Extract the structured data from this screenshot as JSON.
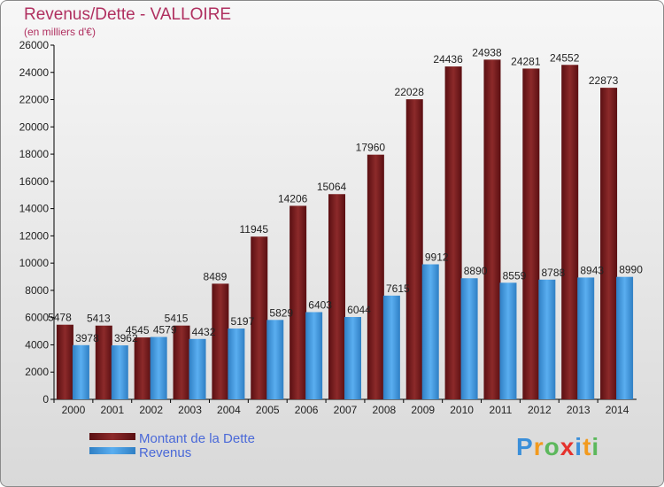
{
  "chart_data": {
    "type": "bar",
    "title": "Revenus/Dette - VALLOIRE",
    "subtitle": "(en milliers d'€)",
    "categories": [
      "2000",
      "2001",
      "2002",
      "2003",
      "2004",
      "2005",
      "2006",
      "2007",
      "2008",
      "2009",
      "2010",
      "2011",
      "2012",
      "2013",
      "2014"
    ],
    "series": [
      {
        "name": "Montant de la Dette",
        "color": "#7a1b1b",
        "values": [
          5478,
          5413,
          4545,
          5415,
          8489,
          11945,
          14206,
          15064,
          17960,
          22028,
          24436,
          24938,
          24281,
          24552,
          22873
        ]
      },
      {
        "name": "Revenus",
        "color": "#3d95db",
        "values": [
          3978,
          3962,
          4579,
          4432,
          5197,
          5829,
          6403,
          6044,
          7615,
          9912,
          8890,
          8559,
          8788,
          8943,
          8990
        ]
      }
    ],
    "ylim": [
      0,
      26000
    ],
    "yticks": [
      0,
      2000,
      4000,
      6000,
      8000,
      10000,
      12000,
      14000,
      16000,
      18000,
      20000,
      22000,
      24000,
      26000
    ],
    "grid": false,
    "legend_position": "bottom-left"
  },
  "logo": {
    "text": "Proxiti",
    "colors": [
      "#3b8fd9",
      "#f29a1e",
      "#5cb85c",
      "#e5322d",
      "#3b8fd9",
      "#f29a1e",
      "#5cb85c"
    ]
  }
}
